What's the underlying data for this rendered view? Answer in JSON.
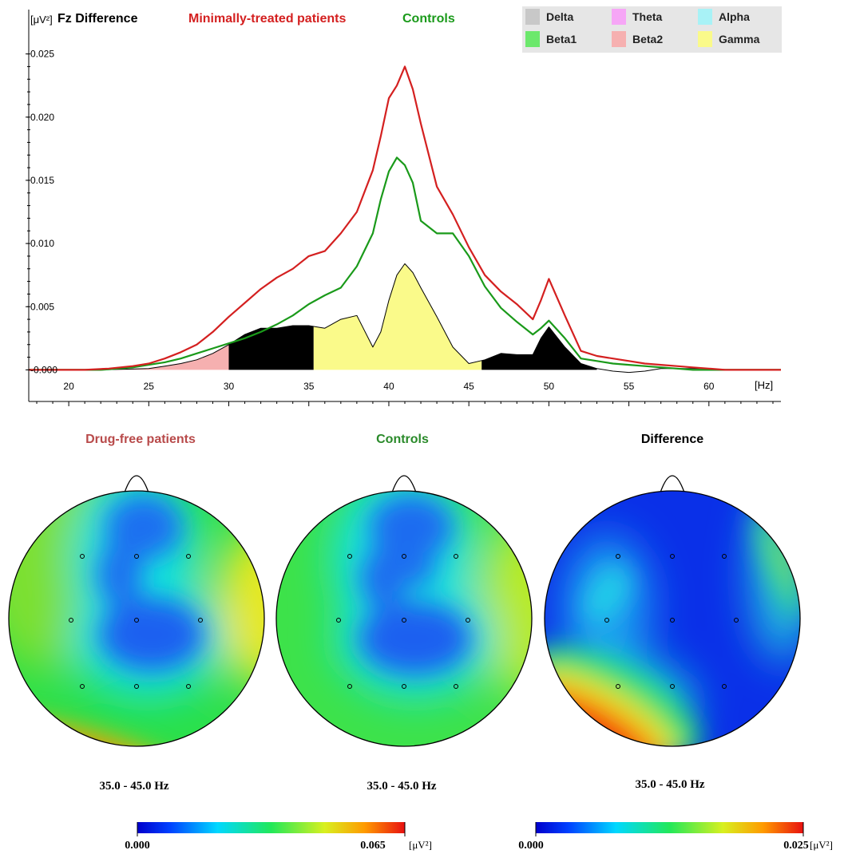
{
  "colors": {
    "red": "#d42020",
    "green": "#1a9a1a",
    "drugfree_title": "#b84a4a",
    "controls_title": "#2a8a2a",
    "band_delta": "#c8c8c8",
    "band_theta": "#f6a6f6",
    "band_alpha": "#a8f2f6",
    "band_beta1": "#6ce86c",
    "band_beta2": "#f6b0b0",
    "band_gamma": "#fafa8a",
    "difference_fill": "#000000",
    "legend_bg": "#e6e6e6"
  },
  "chart_data": {
    "type": "line",
    "title_parts": [
      "Fz Difference",
      "Minimally-treated patients",
      "Controls"
    ],
    "ylabel": "[μV²]",
    "xlabel": "[Hz]",
    "xlim": [
      17.5,
      64.5
    ],
    "ylim": [
      -0.0025,
      0.0275
    ],
    "xticks": [
      20,
      25,
      30,
      35,
      40,
      45,
      50,
      55,
      60
    ],
    "yticks": [
      {
        "v": 0.0,
        "label": "-0.000"
      },
      {
        "v": 0.005,
        "label": "0.005"
      },
      {
        "v": 0.01,
        "label": "0.010"
      },
      {
        "v": 0.015,
        "label": "0.015"
      },
      {
        "v": 0.02,
        "label": "0.020"
      },
      {
        "v": 0.025,
        "label": "0.025"
      }
    ],
    "legend": {
      "placement": "top-right",
      "items": [
        {
          "name": "Delta",
          "color": "#c8c8c8"
        },
        {
          "name": "Theta",
          "color": "#f6a6f6"
        },
        {
          "name": "Alpha",
          "color": "#a8f2f6"
        },
        {
          "name": "Beta1",
          "color": "#6ce86c"
        },
        {
          "name": "Beta2",
          "color": "#f6b0b0"
        },
        {
          "name": "Gamma",
          "color": "#fafa8a"
        }
      ]
    },
    "series": [
      {
        "name": "Minimally-treated patients",
        "color": "#d42020",
        "x": [
          17.5,
          21,
          22.5,
          24,
          25,
          26,
          27,
          28,
          29,
          30,
          31,
          32,
          33,
          34,
          35,
          36,
          37,
          38,
          39,
          39.5,
          40,
          40.5,
          41,
          41.5,
          42,
          43,
          44,
          45,
          46,
          47,
          48,
          49,
          49.5,
          50,
          51,
          52,
          53,
          54,
          55,
          56,
          57,
          58,
          59,
          60,
          61,
          62,
          64.5
        ],
        "y": [
          0,
          0,
          0.0001,
          0.0003,
          0.0005,
          0.0009,
          0.0014,
          0.002,
          0.003,
          0.0042,
          0.0053,
          0.0064,
          0.0073,
          0.008,
          0.009,
          0.0094,
          0.0108,
          0.0125,
          0.0158,
          0.0185,
          0.0215,
          0.0225,
          0.024,
          0.0222,
          0.0195,
          0.0145,
          0.0123,
          0.0097,
          0.0075,
          0.0062,
          0.0052,
          0.004,
          0.0055,
          0.0072,
          0.0043,
          0.0015,
          0.0011,
          0.0009,
          0.0007,
          0.0005,
          0.0004,
          0.0003,
          0.0002,
          0.0001,
          0,
          0,
          0
        ]
      },
      {
        "name": "Controls",
        "color": "#1a9a1a",
        "x": [
          17.5,
          22,
          24,
          25,
          26,
          27,
          28,
          29,
          30,
          31,
          32,
          33,
          34,
          35,
          36,
          37,
          38,
          39,
          39.5,
          40,
          40.5,
          41,
          41.5,
          42,
          43,
          44,
          45,
          46,
          47,
          48,
          49,
          49.5,
          50,
          51,
          52,
          53,
          54,
          55,
          56,
          57,
          58,
          59,
          60,
          61,
          64.5
        ],
        "y": [
          0,
          0,
          0.0002,
          0.0004,
          0.0006,
          0.0009,
          0.0013,
          0.0017,
          0.0021,
          0.0025,
          0.003,
          0.0036,
          0.0043,
          0.0052,
          0.0059,
          0.0065,
          0.0082,
          0.0108,
          0.0135,
          0.0157,
          0.0168,
          0.0162,
          0.0148,
          0.0118,
          0.0108,
          0.0108,
          0.009,
          0.0066,
          0.0049,
          0.0038,
          0.0028,
          0.0033,
          0.0039,
          0.0025,
          0.0009,
          0.0007,
          0.0005,
          0.0004,
          0.0003,
          0.0002,
          0.0001,
          0,
          0,
          0,
          0
        ]
      },
      {
        "name": "Difference",
        "color": "#000000",
        "x": [
          17.5,
          22,
          25,
          26,
          27,
          28,
          29,
          30,
          31,
          32,
          33,
          34,
          35,
          36,
          37,
          38,
          39,
          39.5,
          40,
          40.5,
          41,
          41.5,
          42,
          43,
          44,
          45,
          46,
          47,
          48,
          49,
          49.5,
          50,
          51,
          52,
          53,
          54,
          55,
          56,
          57,
          58,
          59,
          60,
          61,
          64.5
        ],
        "y": [
          0,
          0,
          0.0001,
          0.0003,
          0.0005,
          0.0008,
          0.0013,
          0.002,
          0.0028,
          0.0033,
          0.0033,
          0.0035,
          0.0035,
          0.0033,
          0.004,
          0.0043,
          0.0018,
          0.003,
          0.0055,
          0.0075,
          0.0084,
          0.0077,
          0.0065,
          0.0042,
          0.0018,
          0.0005,
          0.0008,
          0.0013,
          0.0012,
          0.0012,
          0.0025,
          0.0034,
          0.0018,
          0.0005,
          0.0001,
          -0.0001,
          -0.0002,
          -0.0001,
          0.0001,
          0.0001,
          0.0001,
          0.0001,
          0,
          0
        ]
      }
    ],
    "band_fills": [
      {
        "name": "Beta2",
        "from": 22,
        "to": 30,
        "color": "#f6b0b0"
      },
      {
        "name": "Gamma-low",
        "from": 30,
        "to": 35.3,
        "color": "#000000"
      },
      {
        "name": "Gamma",
        "from": 35.3,
        "to": 45.8,
        "color": "#fafa8a"
      },
      {
        "name": "Gamma-high",
        "from": 45.8,
        "to": 53,
        "color": "#000000"
      }
    ]
  },
  "topomaps": [
    {
      "title": "Drug-free patients",
      "range": "35.0 - 45.0 Hz",
      "variant": "a"
    },
    {
      "title": "Controls",
      "range": "35.0 - 45.0 Hz",
      "variant": "b"
    },
    {
      "title": "Difference",
      "range": "35.0 - 45.0 Hz",
      "variant": "c"
    }
  ],
  "colorbars": [
    {
      "min_label": "0.000",
      "max_label": "0.065",
      "unit": "[μV²]"
    },
    {
      "min_label": "0.000",
      "max_label": "0.025",
      "unit": "[μV²]"
    }
  ]
}
